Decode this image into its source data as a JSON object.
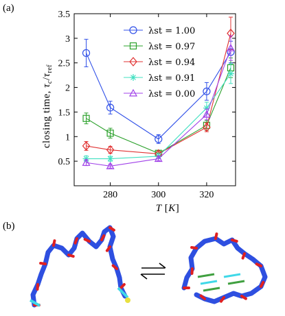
{
  "panel_labels": {
    "a": "(a)",
    "b": "(b)"
  },
  "chart_data": {
    "type": "line",
    "title": "",
    "xlabel": "T [K]",
    "ylabel": "closing time, τc/τref",
    "xlim": [
      265,
      332
    ],
    "ylim": [
      0,
      3.5
    ],
    "x_ticks": [
      280,
      300,
      320
    ],
    "x_tick_labels": [
      "280",
      "300",
      "320"
    ],
    "y_ticks": [
      0.5,
      1,
      1.5,
      2,
      2.5,
      3,
      3.5
    ],
    "y_tick_labels": [
      "0.5",
      "1",
      "1.5",
      "2",
      "2.5",
      "3",
      "3.5"
    ],
    "grid": false,
    "legend_position": "top-right",
    "x": [
      270,
      280,
      300,
      320,
      330
    ],
    "series": [
      {
        "name": "λst = 1.00",
        "color": "#3050e8",
        "marker": "circle",
        "values": [
          2.7,
          1.59,
          0.95,
          1.92,
          2.72
        ],
        "errors": [
          0.28,
          0.13,
          0.09,
          0.18,
          0.22
        ]
      },
      {
        "name": "λst = 0.97",
        "color": "#2aa02a",
        "marker": "square",
        "values": [
          1.37,
          1.07,
          0.66,
          1.23,
          2.4
        ],
        "errors": [
          0.11,
          0.1,
          0.05,
          0.1,
          0.2
        ]
      },
      {
        "name": "λst = 0.94",
        "color": "#e03030",
        "marker": "diamond",
        "values": [
          0.81,
          0.73,
          0.65,
          1.19,
          3.1
        ],
        "errors": [
          0.09,
          0.07,
          0.05,
          0.09,
          0.33
        ]
      },
      {
        "name": "λst = 0.91",
        "color": "#40e0c0",
        "marker": "star",
        "values": [
          0.55,
          0.55,
          0.6,
          1.58,
          2.28
        ],
        "errors": [
          0.06,
          0.05,
          0.05,
          0.12,
          0.2
        ]
      },
      {
        "name": "λst = 0.00",
        "color": "#a040e8",
        "marker": "triangle",
        "values": [
          0.47,
          0.4,
          0.55,
          1.45,
          2.8
        ],
        "errors": [
          0.06,
          0.04,
          0.04,
          0.11,
          0.25
        ]
      }
    ]
  },
  "illustration": {
    "colors": {
      "backbone": "#2e4fe0",
      "oxygen": "#e02020",
      "cyan": "#40d8e8",
      "yellow": "#e8e040",
      "green": "#40a040"
    },
    "equilibrium_icon": "equilibrium-arrows-icon"
  }
}
